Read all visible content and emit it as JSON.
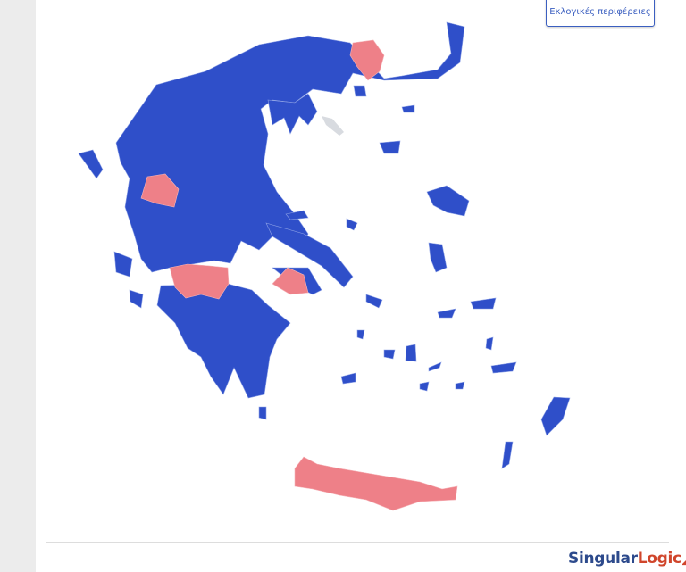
{
  "header": {
    "regions_button": "Εκλογικές περιφέρειες"
  },
  "map": {
    "colors": {
      "winner_a": "#2f4fc9",
      "winner_b": "#ee8088",
      "no_data": "#d8dbe0"
    }
  },
  "footer": {
    "logo_part1": "Singular",
    "logo_part2": "Logic"
  }
}
